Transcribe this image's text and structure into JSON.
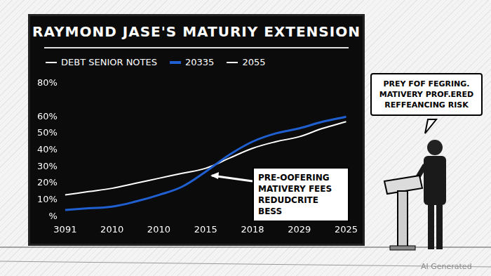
{
  "chart_data": {
    "type": "line",
    "title": "RAYMOND JASE'S MATURIY EXTENSION",
    "subtitle": "DEBT SENIOR NOTES",
    "categories": [
      "3091",
      null,
      "2010",
      null,
      "2010",
      null,
      "2015",
      null,
      "2018",
      null,
      "2029",
      null,
      "2025"
    ],
    "series": [
      {
        "name": "20335",
        "color": "#1f5fd0",
        "values": [
          4,
          5,
          6,
          9,
          13,
          18,
          27,
          37,
          45,
          50,
          53,
          57,
          60
        ]
      },
      {
        "name": "2055",
        "color": "#ffffff",
        "values": [
          13,
          15,
          17,
          20,
          23,
          26,
          29,
          35,
          41,
          45,
          48,
          53,
          57
        ]
      }
    ],
    "ylim": [
      0,
      80
    ],
    "yticks": [
      {
        "value": 0,
        "label": "%"
      },
      {
        "value": 10,
        "label": "10%"
      },
      {
        "value": 20,
        "label": "20%"
      },
      {
        "value": 30,
        "label": "30%"
      },
      {
        "value": 40,
        "label": "40%"
      },
      {
        "value": 50,
        "label": "50%"
      },
      {
        "value": 60,
        "label": "60%"
      },
      {
        "value": 80,
        "label": "80%"
      }
    ],
    "grid": false,
    "legend": "top",
    "annotations": [
      {
        "lines": [
          "PRE-OOFERING",
          "MATIVERY FEES",
          "REDUDCRITE BESS"
        ]
      },
      {
        "lines": [
          "PREY FOF FEGRING.",
          "MATIVERY PROF.ERED",
          "REFFEANCING RISK"
        ]
      },
      {
        "lines": [
          "AI Generated"
        ]
      }
    ]
  }
}
